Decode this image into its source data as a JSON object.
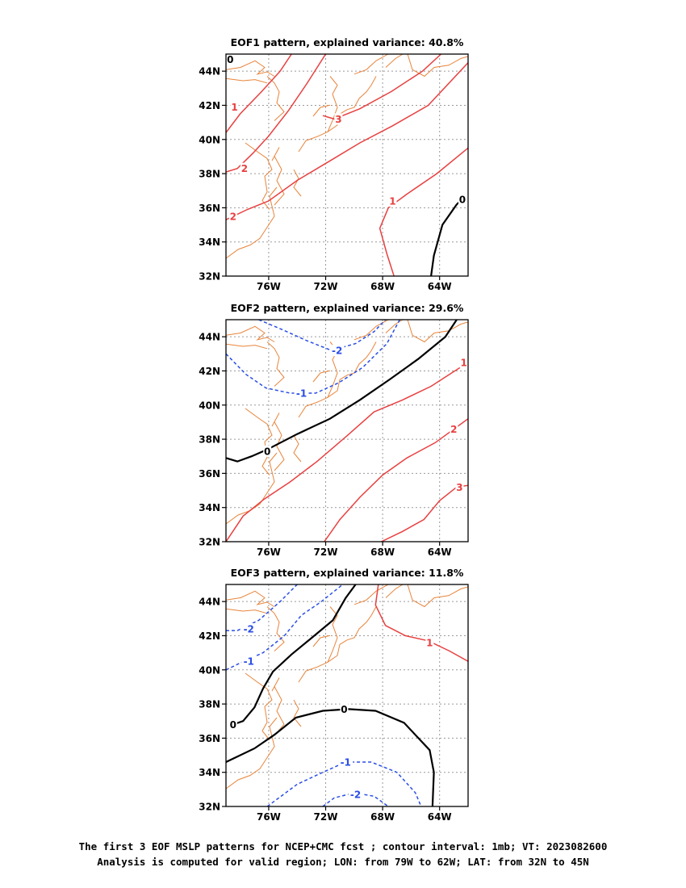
{
  "chart_data": [
    {
      "type": "contour-map",
      "title": "EOF1 pattern, explained variance: 40.8%",
      "x_ticks": [
        "76W",
        "72W",
        "68W",
        "64W"
      ],
      "x_tick_values": [
        -76,
        -72,
        -68,
        -64
      ],
      "y_ticks": [
        "32N",
        "34N",
        "36N",
        "38N",
        "40N",
        "42N",
        "44N"
      ],
      "y_tick_values": [
        32,
        34,
        36,
        38,
        40,
        42,
        44
      ],
      "xlim": [
        -79,
        -62
      ],
      "ylim": [
        32,
        45
      ],
      "grid": true,
      "contours": [
        {
          "level": 0,
          "label": "0",
          "style": "solid",
          "color": "#000000",
          "segments": [
            [
              [
                -78.8,
                44.6
              ],
              [
                -78.6,
                44.8
              ]
            ],
            [
              [
                -64.6,
                32
              ],
              [
                -64.4,
                33.2
              ],
              [
                -63.8,
                35
              ],
              [
                -62.8,
                36.2
              ],
              [
                -62.4,
                36.5
              ]
            ]
          ],
          "labels": [
            [
              -78.7,
              44.7
            ],
            [
              -62.4,
              36.5
            ]
          ]
        },
        {
          "level": 1,
          "label": "1",
          "style": "solid",
          "color": "#e84040",
          "segments": [
            [
              [
                -79,
                40.4
              ],
              [
                -78,
                41.5
              ],
              [
                -76.5,
                42.8
              ],
              [
                -75.2,
                44
              ],
              [
                -74.4,
                45
              ]
            ],
            [
              [
                -67.2,
                32
              ],
              [
                -67.7,
                33.3
              ],
              [
                -68.2,
                34.8
              ],
              [
                -67.6,
                36
              ],
              [
                -66.3,
                36.8
              ],
              [
                -64.2,
                38
              ],
              [
                -62,
                39.5
              ]
            ]
          ],
          "labels": [
            [
              -78.4,
              41.9
            ],
            [
              -67.3,
              36.4
            ]
          ]
        },
        {
          "level": 2,
          "label": "2",
          "style": "solid",
          "color": "#e84040",
          "segments": [
            [
              [
                -79,
                38.1
              ],
              [
                -78.2,
                38.3
              ],
              [
                -77.1,
                39.2
              ],
              [
                -76,
                40.2
              ],
              [
                -74.6,
                41.7
              ],
              [
                -73.3,
                43.3
              ],
              [
                -72,
                45
              ]
            ],
            [
              [
                -79,
                35.3
              ],
              [
                -77.5,
                35.9
              ],
              [
                -76,
                36.4
              ],
              [
                -74,
                37.6
              ],
              [
                -71.8,
                38.7
              ],
              [
                -69.6,
                39.8
              ],
              [
                -67.3,
                40.8
              ],
              [
                -64.8,
                42
              ],
              [
                -62,
                44.5
              ]
            ]
          ],
          "labels": [
            [
              -77.7,
              38.3
            ],
            [
              -78.5,
              35.5
            ]
          ]
        },
        {
          "level": 3,
          "label": "3",
          "style": "solid",
          "color": "#e84040",
          "segments": [
            [
              [
                -72.2,
                41.4
              ],
              [
                -71.4,
                41.2
              ],
              [
                -69.6,
                41.8
              ],
              [
                -67.4,
                42.8
              ],
              [
                -65.2,
                44
              ],
              [
                -63.9,
                45
              ]
            ]
          ],
          "labels": [
            [
              -71.1,
              41.2
            ]
          ]
        }
      ]
    },
    {
      "type": "contour-map",
      "title": "EOF2 pattern, explained variance: 29.6%",
      "x_ticks": [
        "76W",
        "72W",
        "68W",
        "64W"
      ],
      "x_tick_values": [
        -76,
        -72,
        -68,
        -64
      ],
      "y_ticks": [
        "32N",
        "34N",
        "36N",
        "38N",
        "40N",
        "42N",
        "44N"
      ],
      "y_tick_values": [
        32,
        34,
        36,
        38,
        40,
        42,
        44
      ],
      "xlim": [
        -79,
        -62
      ],
      "ylim": [
        32,
        45
      ],
      "grid": true,
      "contours": [
        {
          "level": -2,
          "label": "-2",
          "style": "dashed",
          "color": "#2a4ee6",
          "segments": [
            [
              [
                -76.7,
                45
              ],
              [
                -75,
                44.4
              ],
              [
                -73.4,
                43.8
              ],
              [
                -71.6,
                43.2
              ],
              [
                -69.9,
                43.6
              ],
              [
                -68.6,
                44.3
              ],
              [
                -67.8,
                45
              ]
            ]
          ],
          "labels": [
            [
              -71.2,
              43.2
            ]
          ]
        },
        {
          "level": -1,
          "label": "-1",
          "style": "dashed",
          "color": "#2a4ee6",
          "segments": [
            [
              [
                -79,
                43
              ],
              [
                -77.6,
                41.8
              ],
              [
                -76.2,
                41
              ],
              [
                -74.5,
                40.7
              ],
              [
                -72.7,
                40.7
              ],
              [
                -71.1,
                41.3
              ],
              [
                -69.4,
                42.2
              ],
              [
                -67.7,
                43.6
              ],
              [
                -66.8,
                45
              ]
            ]
          ],
          "labels": [
            [
              -73.7,
              40.7
            ]
          ]
        },
        {
          "level": 0,
          "label": "0",
          "style": "solid",
          "color": "#000000",
          "segments": [
            [
              [
                -79,
                36.9
              ],
              [
                -78.2,
                36.7
              ],
              [
                -77.2,
                37
              ],
              [
                -76.1,
                37.4
              ],
              [
                -74,
                38.3
              ],
              [
                -71.7,
                39.2
              ],
              [
                -69.6,
                40.3
              ],
              [
                -67.5,
                41.5
              ],
              [
                -65.5,
                42.7
              ],
              [
                -63.6,
                44
              ],
              [
                -62.8,
                45
              ]
            ]
          ],
          "labels": [
            [
              -76.1,
              37.3
            ]
          ]
        },
        {
          "level": 1,
          "label": "1",
          "style": "solid",
          "color": "#e84040",
          "segments": [
            [
              [
                -79,
                32
              ],
              [
                -77.8,
                33.5
              ],
              [
                -76.3,
                34.5
              ],
              [
                -74.5,
                35.5
              ],
              [
                -72.6,
                36.7
              ],
              [
                -70.5,
                38.2
              ],
              [
                -68.6,
                39.6
              ],
              [
                -66.6,
                40.3
              ],
              [
                -64.6,
                41.1
              ],
              [
                -62,
                42.5
              ]
            ]
          ],
          "labels": [
            [
              -62.3,
              42.5
            ]
          ]
        },
        {
          "level": 2,
          "label": "2",
          "style": "solid",
          "color": "#e84040",
          "segments": [
            [
              [
                -72.1,
                32
              ],
              [
                -71,
                33.3
              ],
              [
                -69.6,
                34.6
              ],
              [
                -68,
                35.9
              ],
              [
                -66.3,
                36.9
              ],
              [
                -64.3,
                37.8
              ],
              [
                -62,
                39.2
              ]
            ]
          ],
          "labels": [
            [
              -63,
              38.6
            ]
          ]
        },
        {
          "level": 3,
          "label": "3",
          "style": "solid",
          "color": "#e84040",
          "segments": [
            [
              [
                -68.1,
                32
              ],
              [
                -66.6,
                32.6
              ],
              [
                -65.1,
                33.3
              ],
              [
                -64,
                34.4
              ],
              [
                -62.8,
                35.2
              ],
              [
                -62,
                35.3
              ]
            ]
          ],
          "labels": [
            [
              -62.6,
              35.2
            ]
          ]
        }
      ]
    },
    {
      "type": "contour-map",
      "title": "EOF3 pattern, explained variance: 11.8%",
      "x_ticks": [
        "76W",
        "72W",
        "68W",
        "64W"
      ],
      "x_tick_values": [
        -76,
        -72,
        -68,
        -64
      ],
      "y_ticks": [
        "32N",
        "34N",
        "36N",
        "38N",
        "40N",
        "42N",
        "44N"
      ],
      "y_tick_values": [
        32,
        34,
        36,
        38,
        40,
        42,
        44
      ],
      "xlim": [
        -79,
        -62
      ],
      "ylim": [
        32,
        45
      ],
      "grid": true,
      "contours": [
        {
          "level": -2,
          "label": "-2",
          "style": "dashed",
          "color": "#2a4ee6",
          "segments": [
            [
              [
                -79,
                42.3
              ],
              [
                -78.2,
                42.3
              ],
              [
                -76.7,
                42.9
              ],
              [
                -75.2,
                44
              ],
              [
                -74,
                45
              ]
            ],
            [
              [
                -72.2,
                32
              ],
              [
                -71.4,
                32.5
              ],
              [
                -70,
                32.8
              ],
              [
                -68.6,
                32.6
              ],
              [
                -67.6,
                32
              ]
            ]
          ],
          "labels": [
            [
              -77.4,
              42.4
            ],
            [
              -69.9,
              32.7
            ]
          ]
        },
        {
          "level": -1,
          "label": "-1",
          "style": "dashed",
          "color": "#2a4ee6",
          "segments": [
            [
              [
                -79,
                40
              ],
              [
                -78,
                40.4
              ],
              [
                -76.4,
                41
              ],
              [
                -74.9,
                42
              ],
              [
                -73.7,
                43.2
              ],
              [
                -72.3,
                44
              ],
              [
                -70.8,
                45
              ]
            ],
            [
              [
                -76.1,
                32
              ],
              [
                -74,
                33.3
              ],
              [
                -72.2,
                34
              ],
              [
                -70.6,
                34.6
              ],
              [
                -68.8,
                34.6
              ],
              [
                -67,
                34
              ],
              [
                -65.7,
                32.8
              ],
              [
                -65.3,
                32
              ]
            ]
          ],
          "labels": [
            [
              -77.4,
              40.5
            ],
            [
              -70.6,
              34.6
            ]
          ]
        },
        {
          "level": 0,
          "label": "0",
          "style": "solid",
          "color": "#000000",
          "segments": [
            [
              [
                -79,
                34.6
              ],
              [
                -77,
                35.4
              ],
              [
                -75.6,
                36.2
              ],
              [
                -74.1,
                37.2
              ],
              [
                -72.2,
                37.6
              ],
              [
                -70.4,
                37.7
              ],
              [
                -68.5,
                37.6
              ],
              [
                -66.5,
                36.9
              ],
              [
                -64.7,
                35.3
              ],
              [
                -64.4,
                34
              ],
              [
                -64.5,
                32
              ]
            ],
            [
              [
                -78.5,
                36.8
              ],
              [
                -77.8,
                37
              ],
              [
                -77,
                37.8
              ],
              [
                -76.4,
                38.9
              ],
              [
                -75.7,
                39.9
              ],
              [
                -74.4,
                40.9
              ],
              [
                -72.8,
                42
              ],
              [
                -71.5,
                42.9
              ],
              [
                -70.6,
                44.2
              ],
              [
                -69.9,
                45
              ]
            ]
          ],
          "labels": [
            [
              -70.7,
              37.7
            ],
            [
              -78.5,
              36.8
            ]
          ]
        },
        {
          "level": 1,
          "label": "1",
          "style": "solid",
          "color": "#e84040",
          "segments": [
            [
              [
                -68.3,
                45
              ],
              [
                -68.5,
                43.8
              ],
              [
                -67.8,
                42.6
              ],
              [
                -66.4,
                42
              ],
              [
                -64.8,
                41.7
              ],
              [
                -63.3,
                41.1
              ],
              [
                -62,
                40.5
              ]
            ]
          ],
          "labels": [
            [
              -64.7,
              41.6
            ]
          ]
        }
      ]
    }
  ],
  "caption": {
    "line1": "The first 3 EOF MSLP patterns for NCEP+CMC fcst ; contour interval: 1mb; VT: 2023082600",
    "line2": "Analysis is computed for valid region; LON: from 79W to 62W; LAT: from 32N to 45N"
  },
  "colors": {
    "positive": "#e84040",
    "negative": "#2a4ee6",
    "zero": "#000000",
    "coastline": "#e8843a",
    "grid": "#9a9a9a"
  }
}
